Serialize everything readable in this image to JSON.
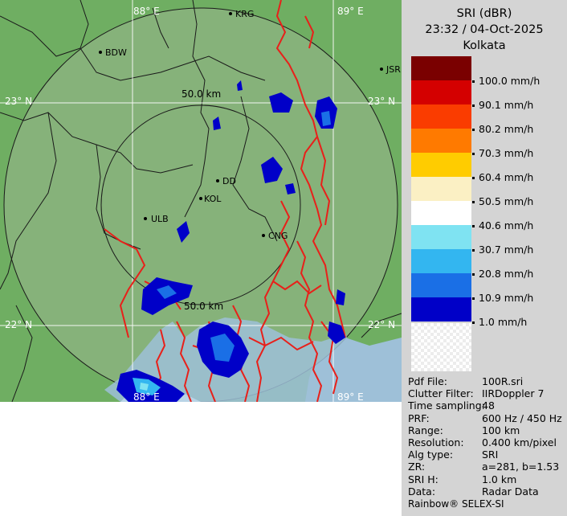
{
  "map": {
    "graticule": {
      "lon_88": "88° E",
      "lon_89": "89° E",
      "lat_23": "23° N",
      "lat_22": "22° N"
    },
    "range_rings": {
      "inner": "50.0 km",
      "inner_bottom": "50.0 km"
    },
    "places": {
      "krg": "KRG",
      "bdw": "BDW",
      "jsr": "JSR",
      "dd": "DD",
      "kol": "KOL",
      "ulb": "ULB",
      "cng": "CNG"
    },
    "colors": {
      "land": "#6fae62",
      "range_disc": "#86b27a",
      "rivers": "#e8201a",
      "borders": "#1a1a1a",
      "water": "#9ec0d8"
    }
  },
  "legend": {
    "product": "SRI (dBR)",
    "datetime": "23:32 / 04-Oct-2025",
    "station": "Kolkata",
    "levels": [
      {
        "label": "100.0 mm/h",
        "color": "#7a0000"
      },
      {
        "label": "90.1 mm/h",
        "color": "#d40000"
      },
      {
        "label": "80.2 mm/h",
        "color": "#fa3c00"
      },
      {
        "label": "70.3 mm/h",
        "color": "#ff7a00"
      },
      {
        "label": "60.4 mm/h",
        "color": "#ffcc00"
      },
      {
        "label": "50.5 mm/h",
        "color": "#fbf0c4"
      },
      {
        "label": "40.6 mm/h",
        "color": "#ffffff"
      },
      {
        "label": "30.7 mm/h",
        "color": "#7fe3f2"
      },
      {
        "label": "20.8 mm/h",
        "color": "#33b6f0"
      },
      {
        "label": "10.9 mm/h",
        "color": "#1a6fe6"
      },
      {
        "label": "1.0 mm/h",
        "color": "#0000c8"
      }
    ]
  },
  "info": [
    {
      "key": "Pdf File:",
      "value": "100R.sri"
    },
    {
      "key": "Clutter Filter:",
      "value": "IIRDoppler 7"
    },
    {
      "key": "Time sampling:",
      "value": "48"
    },
    {
      "key": "PRF:",
      "value": "600 Hz / 450 Hz"
    },
    {
      "key": "Range:",
      "value": "100 km"
    },
    {
      "key": "Resolution:",
      "value": "0.400 km/pixel"
    },
    {
      "key": "Alg type:",
      "value": "SRI"
    },
    {
      "key": "ZR:",
      "value": "a=281, b=1.53"
    },
    {
      "key": "SRI H:",
      "value": "1.0 km"
    },
    {
      "key": "Data:",
      "value": "Radar Data"
    }
  ],
  "brand": "Rainbow® SELEX-SI"
}
